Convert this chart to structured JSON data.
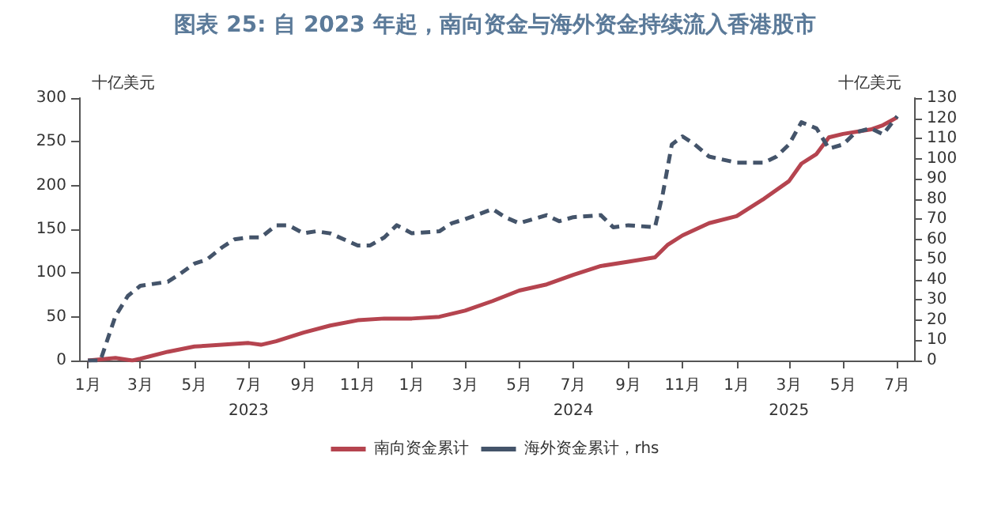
{
  "chart_data": {
    "type": "line",
    "title": "图表 25: 自 2023 年起，南向资金与海外资金持续流入香港股市",
    "ylabel": "十亿美元",
    "y2label": "十亿美元",
    "xlim": [
      "2022-12-22",
      "2025-07-20"
    ],
    "xticks": [
      {
        "value": "2023-01-01",
        "label": "1月"
      },
      {
        "value": "2023-03-01",
        "label": "3月"
      },
      {
        "value": "2023-05-01",
        "label": "5月"
      },
      {
        "value": "2023-07-01",
        "label": "7月\n2023"
      },
      {
        "value": "2023-09-01",
        "label": "9月"
      },
      {
        "value": "2023-11-01",
        "label": "11月"
      },
      {
        "value": "2024-01-01",
        "label": "1月"
      },
      {
        "value": "2024-03-01",
        "label": "3月"
      },
      {
        "value": "2024-05-01",
        "label": "5月"
      },
      {
        "value": "2024-07-01",
        "label": "7月\n2024"
      },
      {
        "value": "2024-09-01",
        "label": "9月"
      },
      {
        "value": "2024-11-01",
        "label": "11月"
      },
      {
        "value": "2025-01-01",
        "label": "1月"
      },
      {
        "value": "2025-03-01",
        "label": "3月\n2025"
      },
      {
        "value": "2025-05-01",
        "label": "5月"
      },
      {
        "value": "2025-07-01",
        "label": "7月"
      }
    ],
    "ylim": [
      0,
      300
    ],
    "yticks": [
      0,
      50,
      100,
      150,
      200,
      250,
      300
    ],
    "y2lim": [
      0,
      130
    ],
    "y2ticks": [
      0,
      10,
      20,
      30,
      40,
      50,
      60,
      70,
      80,
      90,
      100,
      110,
      120,
      130
    ],
    "grid": false,
    "legend": "bottom",
    "marker": "none",
    "series": [
      {
        "name": "南向资金累计",
        "color": "#b5444f",
        "line_style": "solid",
        "x": [
          "2023-01-01",
          "2023-02-01",
          "2023-02-20",
          "2023-03-01",
          "2023-04-01",
          "2023-05-01",
          "2023-06-01",
          "2023-07-01",
          "2023-07-15",
          "2023-08-01",
          "2023-09-01",
          "2023-10-01",
          "2023-11-01",
          "2023-12-01",
          "2024-01-01",
          "2024-02-01",
          "2024-03-01",
          "2024-04-01",
          "2024-05-01",
          "2024-06-01",
          "2024-07-01",
          "2024-08-01",
          "2024-09-01",
          "2024-10-01",
          "2024-10-15",
          "2024-11-01",
          "2024-12-01",
          "2025-01-01",
          "2025-02-01",
          "2025-03-01",
          "2025-03-15",
          "2025-04-01",
          "2025-04-15",
          "2025-05-01",
          "2025-06-01",
          "2025-06-15",
          "2025-07-01"
        ],
        "values": [
          0,
          3,
          0,
          2,
          10,
          16,
          18,
          20,
          18,
          22,
          32,
          40,
          46,
          48,
          48,
          50,
          57,
          68,
          80,
          87,
          98,
          108,
          113,
          118,
          132,
          143,
          157,
          165,
          185,
          205,
          225,
          236,
          255,
          259,
          264,
          269,
          278
        ]
      },
      {
        "name": "海外资金累计，rhs",
        "color": "#44546a",
        "axis": "y2",
        "line_style": "dashed",
        "x": [
          "2023-01-01",
          "2023-01-15",
          "2023-02-01",
          "2023-02-15",
          "2023-03-01",
          "2023-04-01",
          "2023-04-15",
          "2023-05-01",
          "2023-05-15",
          "2023-06-01",
          "2023-06-15",
          "2023-07-01",
          "2023-07-15",
          "2023-08-01",
          "2023-08-15",
          "2023-09-01",
          "2023-09-15",
          "2023-10-01",
          "2023-11-01",
          "2023-11-15",
          "2023-12-01",
          "2023-12-15",
          "2024-01-01",
          "2024-02-01",
          "2024-02-15",
          "2024-03-01",
          "2024-04-01",
          "2024-04-15",
          "2024-05-01",
          "2024-06-01",
          "2024-06-15",
          "2024-07-01",
          "2024-08-01",
          "2024-08-15",
          "2024-09-01",
          "2024-10-01",
          "2024-10-10",
          "2024-10-20",
          "2024-11-01",
          "2024-11-15",
          "2024-12-01",
          "2025-01-01",
          "2025-02-01",
          "2025-02-15",
          "2025-03-01",
          "2025-03-15",
          "2025-04-01",
          "2025-04-15",
          "2025-05-01",
          "2025-05-15",
          "2025-06-01",
          "2025-06-15",
          "2025-07-01"
        ],
        "values": [
          0,
          0,
          22,
          32,
          37,
          39,
          43,
          48,
          50,
          56,
          60,
          61,
          61,
          67,
          67,
          63,
          64,
          63,
          57,
          57,
          61,
          67,
          63,
          64,
          68,
          70,
          75,
          71,
          68,
          72,
          69,
          71,
          72,
          66,
          67,
          66,
          83,
          107,
          111,
          107,
          101,
          98,
          98,
          101,
          107,
          118,
          115,
          105,
          107,
          113,
          115,
          112,
          121
        ]
      }
    ]
  }
}
